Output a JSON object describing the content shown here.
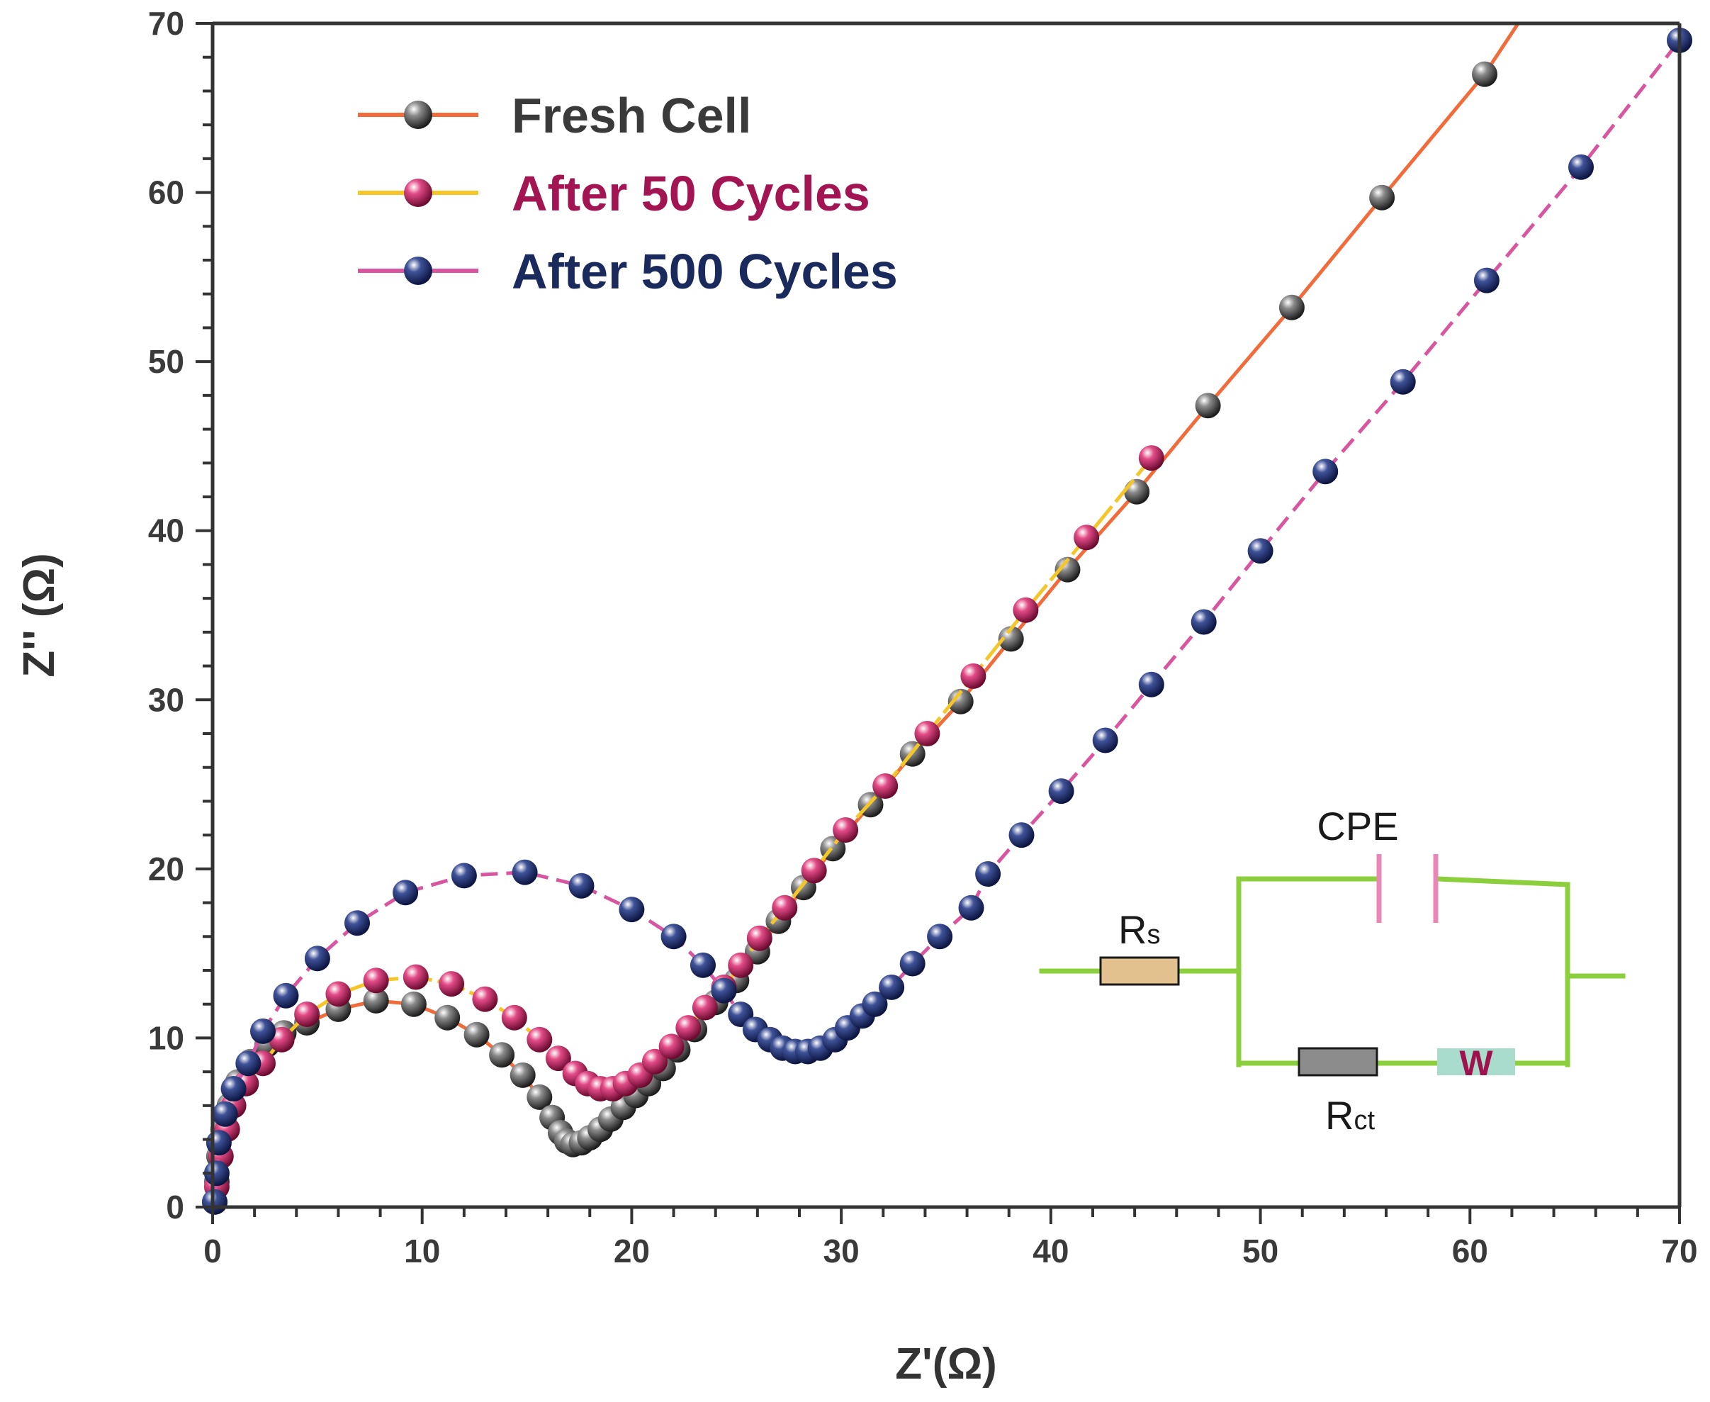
{
  "chart_data": {
    "type": "scatter",
    "title": "",
    "xlabel": "Z'(Ω)",
    "ylabel": "Z'' (Ω)",
    "xlim": [
      0,
      70
    ],
    "ylim": [
      0,
      70
    ],
    "xticks": [
      "0",
      "10",
      "20",
      "30",
      "40",
      "50",
      "60",
      "70"
    ],
    "yticks": [
      "0",
      "10",
      "20",
      "30",
      "40",
      "50",
      "60",
      "70"
    ],
    "grid": false,
    "legend_position": "top-left",
    "series": [
      {
        "name": "Fresh Cell",
        "line_color": "#f26b3a",
        "marker_color": "#4a4a4a",
        "label_color": "#3a3a3a",
        "points": [
          [
            0.1,
            0.3
          ],
          [
            0.2,
            1.5
          ],
          [
            0.3,
            3.0
          ],
          [
            0.5,
            4.6
          ],
          [
            0.8,
            6.0
          ],
          [
            1.2,
            7.4
          ],
          [
            1.8,
            8.6
          ],
          [
            2.6,
            9.6
          ],
          [
            3.4,
            10.3
          ],
          [
            4.5,
            10.9
          ],
          [
            6.0,
            11.7
          ],
          [
            7.8,
            12.2
          ],
          [
            9.6,
            12.0
          ],
          [
            11.2,
            11.2
          ],
          [
            12.6,
            10.2
          ],
          [
            13.8,
            9.0
          ],
          [
            14.8,
            7.8
          ],
          [
            15.6,
            6.5
          ],
          [
            16.2,
            5.3
          ],
          [
            16.6,
            4.4
          ],
          [
            16.9,
            3.9
          ],
          [
            17.2,
            3.7
          ],
          [
            17.6,
            3.8
          ],
          [
            18.0,
            4.1
          ],
          [
            18.5,
            4.6
          ],
          [
            19.0,
            5.2
          ],
          [
            19.6,
            5.9
          ],
          [
            20.2,
            6.6
          ],
          [
            20.8,
            7.3
          ],
          [
            21.5,
            8.2
          ],
          [
            22.2,
            9.3
          ],
          [
            23.0,
            10.5
          ],
          [
            24.0,
            12.1
          ],
          [
            25.0,
            13.4
          ],
          [
            26.0,
            15.1
          ],
          [
            27.0,
            16.9
          ],
          [
            28.2,
            18.9
          ],
          [
            29.6,
            21.2
          ],
          [
            31.4,
            23.8
          ],
          [
            33.4,
            26.8
          ],
          [
            35.7,
            29.9
          ],
          [
            38.1,
            33.6
          ],
          [
            40.8,
            37.7
          ],
          [
            44.1,
            42.3
          ],
          [
            47.5,
            47.4
          ],
          [
            51.5,
            53.2
          ],
          [
            55.8,
            59.7
          ],
          [
            60.7,
            67.0
          ]
        ],
        "line_end": [
          62.3,
          70
        ]
      },
      {
        "name": "After 50 Cycles",
        "line_color": "#f5c62a",
        "marker_color": "#b5114f",
        "label_color": "#a31452",
        "points": [
          [
            0.2,
            1.2
          ],
          [
            0.4,
            3.0
          ],
          [
            0.7,
            4.6
          ],
          [
            1.0,
            6.0
          ],
          [
            1.6,
            7.3
          ],
          [
            2.4,
            8.5
          ],
          [
            3.3,
            9.9
          ],
          [
            4.5,
            11.4
          ],
          [
            6.0,
            12.6
          ],
          [
            7.8,
            13.4
          ],
          [
            9.7,
            13.6
          ],
          [
            11.4,
            13.2
          ],
          [
            13.0,
            12.3
          ],
          [
            14.4,
            11.2
          ],
          [
            15.6,
            9.9
          ],
          [
            16.5,
            8.8
          ],
          [
            17.3,
            7.9
          ],
          [
            17.9,
            7.3
          ],
          [
            18.5,
            7.0
          ],
          [
            19.1,
            7.0
          ],
          [
            19.7,
            7.3
          ],
          [
            20.4,
            7.8
          ],
          [
            21.1,
            8.6
          ],
          [
            21.9,
            9.5
          ],
          [
            22.7,
            10.6
          ],
          [
            23.5,
            11.8
          ],
          [
            24.4,
            13.0
          ],
          [
            25.2,
            14.3
          ],
          [
            26.1,
            15.9
          ],
          [
            27.3,
            17.7
          ],
          [
            28.7,
            19.9
          ],
          [
            30.2,
            22.3
          ],
          [
            32.1,
            24.9
          ],
          [
            34.1,
            28.0
          ],
          [
            36.3,
            31.4
          ],
          [
            38.8,
            35.3
          ],
          [
            41.7,
            39.6
          ],
          [
            44.8,
            44.3
          ]
        ],
        "line_end": [
          44.8,
          44.3
        ]
      },
      {
        "name": "After 500 Cycles",
        "line_color": "#d8569f",
        "marker_color": "#1d2a66",
        "label_color": "#1b2a5c",
        "points": [
          [
            0.1,
            0.3
          ],
          [
            0.2,
            2.0
          ],
          [
            0.3,
            3.8
          ],
          [
            0.6,
            5.5
          ],
          [
            1.0,
            7.0
          ],
          [
            1.7,
            8.5
          ],
          [
            2.4,
            10.4
          ],
          [
            3.5,
            12.5
          ],
          [
            5.0,
            14.7
          ],
          [
            6.9,
            16.8
          ],
          [
            9.2,
            18.6
          ],
          [
            12.0,
            19.6
          ],
          [
            14.9,
            19.8
          ],
          [
            17.6,
            19.0
          ],
          [
            20.0,
            17.6
          ],
          [
            22.0,
            16.0
          ],
          [
            23.4,
            14.3
          ],
          [
            24.4,
            12.8
          ],
          [
            25.2,
            11.4
          ],
          [
            25.9,
            10.5
          ],
          [
            26.6,
            9.9
          ],
          [
            27.2,
            9.4
          ],
          [
            27.8,
            9.2
          ],
          [
            28.4,
            9.2
          ],
          [
            29.0,
            9.4
          ],
          [
            29.7,
            9.9
          ],
          [
            30.3,
            10.6
          ],
          [
            31.0,
            11.3
          ],
          [
            31.6,
            12.0
          ],
          [
            32.4,
            13.0
          ],
          [
            33.4,
            14.4
          ],
          [
            34.7,
            16.0
          ],
          [
            36.2,
            17.7
          ],
          [
            37.0,
            19.7
          ],
          [
            38.6,
            22.0
          ],
          [
            40.5,
            24.6
          ],
          [
            42.6,
            27.6
          ],
          [
            44.8,
            30.9
          ],
          [
            47.3,
            34.6
          ],
          [
            50.0,
            38.8
          ],
          [
            53.1,
            43.5
          ],
          [
            56.8,
            48.8
          ],
          [
            60.8,
            54.8
          ],
          [
            65.3,
            61.5
          ],
          [
            70.0,
            69.0
          ]
        ],
        "line_end": [
          70,
          69.0
        ]
      }
    ]
  },
  "circuit": {
    "rs_label": "R",
    "rs_sub": "s",
    "cpe_label": "CPE",
    "rct_label": "R",
    "rct_sub": "ct",
    "w_label": "W",
    "wire_color": "#8ccf3c",
    "rs_fill": "#e2c18f",
    "rct_fill": "#8c8c8c",
    "w_fill": "#a9dccd",
    "cpe_color": "#e887b6"
  }
}
